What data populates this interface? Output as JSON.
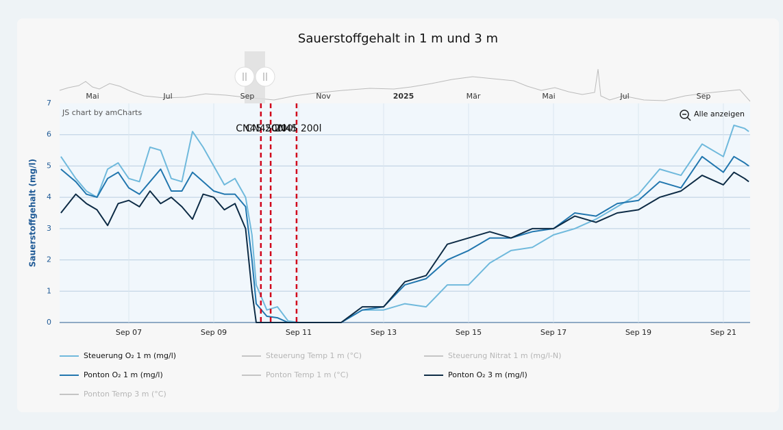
{
  "chart_data": {
    "type": "line",
    "title": "Sauerstoffgehalt in 1 m und 3 m",
    "y_label": "Sauerstoffgehalt (mg/l)",
    "credit": "JS chart by amCharts",
    "zoom_button": "Alle anzeigen",
    "xlim": [
      5.37,
      21.63
    ],
    "xticks": [
      {
        "value": 7,
        "label": "Sep 07"
      },
      {
        "value": 9,
        "label": "Sep 09"
      },
      {
        "value": 11,
        "label": "Sep 11"
      },
      {
        "value": 13,
        "label": "Sep 13"
      },
      {
        "value": 15,
        "label": "Sep 15"
      },
      {
        "value": 17,
        "label": "Sep 17"
      },
      {
        "value": 19,
        "label": "Sep 19"
      },
      {
        "value": 21,
        "label": "Sep 21"
      }
    ],
    "ylim": [
      0,
      7
    ],
    "yticks": [
      0,
      1,
      2,
      3,
      4,
      5,
      6,
      7
    ],
    "grid": true,
    "x": [
      5.4,
      5.75,
      6.0,
      6.25,
      6.5,
      6.75,
      7.0,
      7.25,
      7.5,
      7.75,
      8.0,
      8.25,
      8.5,
      8.75,
      9.0,
      9.25,
      9.5,
      9.75,
      9.9,
      10.0,
      10.25,
      10.5,
      10.75,
      11.0,
      11.5,
      12.0,
      12.5,
      13.0,
      13.5,
      14.0,
      14.5,
      15.0,
      15.5,
      16.0,
      16.5,
      17.0,
      17.5,
      18.0,
      18.5,
      19.0,
      19.5,
      20.0,
      20.5,
      21.0,
      21.25,
      21.5,
      21.6
    ],
    "series": [
      {
        "name": "Steuerung O₂ 1 m (mg/l)",
        "color": "#6fb9dc",
        "values": [
          5.3,
          4.6,
          4.2,
          4.0,
          4.9,
          5.1,
          4.6,
          4.5,
          5.6,
          5.5,
          4.6,
          4.5,
          6.1,
          5.6,
          5.0,
          4.4,
          4.6,
          4.0,
          2.8,
          1.2,
          0.4,
          0.5,
          0.05,
          0,
          0,
          0,
          0.4,
          0.4,
          0.6,
          0.5,
          1.2,
          1.2,
          1.9,
          2.3,
          2.4,
          2.8,
          3.0,
          3.3,
          3.7,
          4.1,
          4.9,
          4.7,
          5.7,
          5.3,
          6.3,
          6.2,
          6.1
        ]
      },
      {
        "name": "Ponton O₂ 1 m (mg/l)",
        "color": "#2176ae",
        "values": [
          4.9,
          4.5,
          4.1,
          4.0,
          4.6,
          4.8,
          4.3,
          4.1,
          4.5,
          4.9,
          4.2,
          4.2,
          4.8,
          4.5,
          4.2,
          4.1,
          4.1,
          3.7,
          2.0,
          0.6,
          0.2,
          0.15,
          0,
          0,
          0,
          0,
          0.4,
          0.5,
          1.2,
          1.4,
          2.0,
          2.3,
          2.7,
          2.7,
          2.9,
          3.0,
          3.5,
          3.4,
          3.8,
          3.9,
          4.5,
          4.3,
          5.3,
          4.8,
          5.3,
          5.1,
          5.0
        ]
      },
      {
        "name": "Ponton O₂ 3 m (mg/l)",
        "color": "#0d2b45",
        "values": [
          3.5,
          4.1,
          3.8,
          3.6,
          3.1,
          3.8,
          3.9,
          3.7,
          4.2,
          3.8,
          4.0,
          3.7,
          3.3,
          4.1,
          4.0,
          3.6,
          3.8,
          3.0,
          1.0,
          0,
          0,
          0,
          0,
          0,
          0,
          0,
          0.5,
          0.5,
          1.3,
          1.5,
          2.5,
          2.7,
          2.9,
          2.7,
          3.0,
          3.0,
          3.4,
          3.2,
          3.5,
          3.6,
          4.0,
          4.2,
          4.7,
          4.4,
          4.8,
          4.6,
          4.5
        ]
      }
    ],
    "hidden_series": [
      {
        "name": "Steuerung Temp 1 m (°C)",
        "color": "#c4c4c4"
      },
      {
        "name": "Steuerung Nitrat 1 m (mg/l-N)",
        "color": "#c4c4c4"
      },
      {
        "name": "Ponton Temp 1 m (°C)",
        "color": "#c4c4c4"
      },
      {
        "name": "Ponton Temp 3 m (°C)",
        "color": "#c4c4c4"
      }
    ],
    "annotations": [
      {
        "x": 10.11,
        "label": "CN45 200l",
        "color": "#d0021b"
      },
      {
        "x": 10.34,
        "label": "CN45 200l",
        "color": "#d0021b"
      },
      {
        "x": 10.95,
        "label": "CN45 200l",
        "color": "#d0021b"
      }
    ],
    "navigator_labels": [
      "Mai",
      "Jul",
      "Sep",
      "Nov",
      "2025",
      "Mär",
      "Mai",
      "Jul",
      "Sep"
    ]
  }
}
